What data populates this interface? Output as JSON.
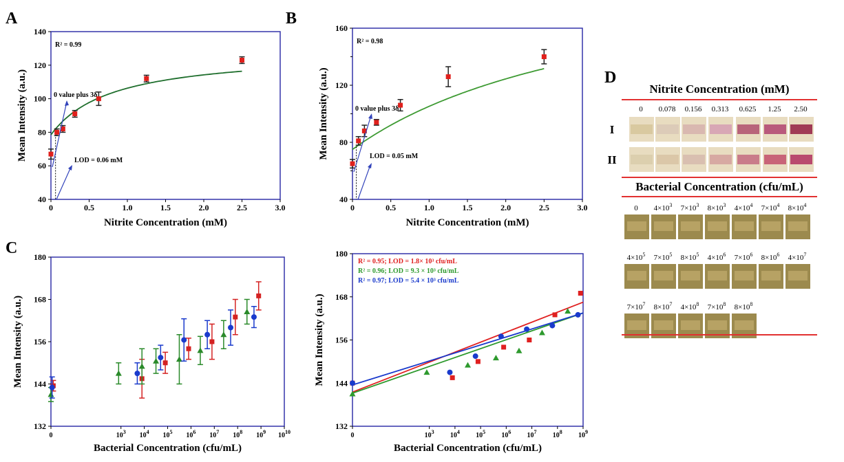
{
  "panels": {
    "A": {
      "label": "A"
    },
    "B": {
      "label": "B"
    },
    "C": {
      "label": "C"
    },
    "D": {
      "label": "D"
    }
  },
  "chart_data": [
    {
      "id": "A",
      "type": "scatter",
      "xlabel": "Nitrite Concentration (mM)",
      "ylabel": "Mean Intensity (a.u.)",
      "xlim": [
        0,
        3.0
      ],
      "ylim": [
        40,
        140
      ],
      "xticks": [
        "0",
        "0.5",
        "1.0",
        "1.5",
        "2.0",
        "2.5",
        "3.0"
      ],
      "yticks": [
        "40",
        "60",
        "80",
        "100",
        "120",
        "140"
      ],
      "grid": false,
      "annotations": {
        "r2": "R² = 0.99",
        "blank": "0 value plus 3δ",
        "lod": "LOD = 0.06 mM"
      },
      "lod_x": 0.06,
      "colors": {
        "points": "#e0201c",
        "fit": "#1e6e2c",
        "axes": "#3333aa",
        "arrows": "#3344bb"
      },
      "points": [
        {
          "x": 0,
          "y": 67,
          "err": 3
        },
        {
          "x": 0.078,
          "y": 80,
          "err": 2
        },
        {
          "x": 0.156,
          "y": 82,
          "err": 2
        },
        {
          "x": 0.313,
          "y": 91,
          "err": 2
        },
        {
          "x": 0.625,
          "y": 100,
          "err": 4
        },
        {
          "x": 1.25,
          "y": 112,
          "err": 2
        },
        {
          "x": 2.5,
          "y": 123,
          "err": 2
        }
      ],
      "fit": {
        "a": 78.5,
        "b": 50,
        "c": 0.8
      }
    },
    {
      "id": "B",
      "type": "scatter",
      "xlabel": "Nitrite Concentration (mM)",
      "ylabel": "Mean Intensity (a.u.)",
      "xlim": [
        0,
        3.0
      ],
      "ylim": [
        40,
        160
      ],
      "xticks": [
        "0",
        "0.5",
        "1.0",
        "1.5",
        "2.0",
        "2.5",
        "3.0"
      ],
      "yticks": [
        "40",
        "80",
        "120",
        "160"
      ],
      "yticks_minor": [
        60,
        100,
        140
      ],
      "grid": false,
      "annotations": {
        "r2": "R² = 0.98",
        "blank": "0 value plus 3δ",
        "lod": "LOD = 0.05 mM"
      },
      "lod_x": 0.05,
      "colors": {
        "points": "#e0201c",
        "fit": "#3d9a32",
        "axes": "#3333aa",
        "arrows": "#3344bb"
      },
      "points": [
        {
          "x": 0,
          "y": 65,
          "err": 3
        },
        {
          "x": 0.078,
          "y": 81,
          "err": 3
        },
        {
          "x": 0.156,
          "y": 88,
          "err": 4
        },
        {
          "x": 0.313,
          "y": 94,
          "err": 2
        },
        {
          "x": 0.625,
          "y": 106,
          "err": 4
        },
        {
          "x": 1.25,
          "y": 126,
          "err": 7
        },
        {
          "x": 2.5,
          "y": 140,
          "err": 5
        }
      ],
      "fit": {
        "a": 75,
        "b": 136,
        "c": 3.5
      }
    },
    {
      "id": "C-left",
      "type": "scatter",
      "xlabel": "Bacterial Concentration (cfu/mL)",
      "ylabel": "Mean Intensity (a.u.)",
      "xlim": [
        0,
        10
      ],
      "ylim": [
        132,
        180
      ],
      "xticks": [
        {
          "v": 0,
          "base": "0",
          "exp": ""
        },
        {
          "v": 3,
          "base": "10",
          "exp": "3"
        },
        {
          "v": 4,
          "base": "10",
          "exp": "4"
        },
        {
          "v": 5,
          "base": "10",
          "exp": "5"
        },
        {
          "v": 6,
          "base": "10",
          "exp": "6"
        },
        {
          "v": 7,
          "base": "10",
          "exp": "7"
        },
        {
          "v": 8,
          "base": "10",
          "exp": "8"
        },
        {
          "v": 9,
          "base": "10",
          "exp": "9"
        },
        {
          "v": 10,
          "base": "10",
          "exp": "10"
        }
      ],
      "yticks": [
        "132",
        "144",
        "156",
        "168",
        "180"
      ],
      "grid": false,
      "colors": {
        "axes": "#3333aa"
      },
      "series": [
        {
          "color": "#d42222",
          "marker": "square",
          "points": [
            {
              "x": 0.1,
              "y": 143.5,
              "err": 1.5
            },
            {
              "x": 3.9,
              "y": 145.5,
              "err": 5.5
            },
            {
              "x": 4.9,
              "y": 150,
              "err": 3
            },
            {
              "x": 5.9,
              "y": 154,
              "err": 3
            },
            {
              "x": 6.9,
              "y": 156,
              "err": 5
            },
            {
              "x": 7.9,
              "y": 163,
              "err": 5
            },
            {
              "x": 8.9,
              "y": 169,
              "err": 4
            }
          ]
        },
        {
          "color": "#2a8a2a",
          "marker": "triangle",
          "points": [
            {
              "x": 0.0,
              "y": 141,
              "err": 2
            },
            {
              "x": 2.9,
              "y": 147,
              "err": 3
            },
            {
              "x": 3.9,
              "y": 149,
              "err": 5
            },
            {
              "x": 4.5,
              "y": 150.5,
              "err": 3.5
            },
            {
              "x": 5.5,
              "y": 151,
              "err": 7
            },
            {
              "x": 6.4,
              "y": 153.5,
              "err": 4
            },
            {
              "x": 7.4,
              "y": 158,
              "err": 4
            },
            {
              "x": 8.4,
              "y": 164.5,
              "err": 3.5
            }
          ]
        },
        {
          "color": "#1a3acc",
          "marker": "circle",
          "points": [
            {
              "x": 0.05,
              "y": 143,
              "err": 3
            },
            {
              "x": 3.7,
              "y": 147,
              "err": 3
            },
            {
              "x": 4.7,
              "y": 151.5,
              "err": 3.5
            },
            {
              "x": 5.7,
              "y": 156.5,
              "err": 6
            },
            {
              "x": 6.7,
              "y": 158,
              "err": 4
            },
            {
              "x": 7.7,
              "y": 160,
              "err": 5
            },
            {
              "x": 8.7,
              "y": 163,
              "err": 3
            }
          ]
        }
      ]
    },
    {
      "id": "C-right",
      "type": "scatter",
      "xlabel": "Bacterial Concentration (cfu/mL)",
      "ylabel": "Mean Intensity (a.u.)",
      "xlim": [
        0,
        9
      ],
      "ylim": [
        132,
        180
      ],
      "xticks": [
        {
          "v": 0,
          "base": "0",
          "exp": ""
        },
        {
          "v": 3,
          "base": "10",
          "exp": "3"
        },
        {
          "v": 4,
          "base": "10",
          "exp": "4"
        },
        {
          "v": 5,
          "base": "10",
          "exp": "5"
        },
        {
          "v": 6,
          "base": "10",
          "exp": "6"
        },
        {
          "v": 7,
          "base": "10",
          "exp": "7"
        },
        {
          "v": 8,
          "base": "10",
          "exp": "8"
        },
        {
          "v": 9,
          "base": "10",
          "exp": "9"
        }
      ],
      "yticks": [
        "132",
        "144",
        "156",
        "168",
        "180"
      ],
      "grid": false,
      "legend": "top-left",
      "colors": {
        "axes": "#3333aa"
      },
      "series": [
        {
          "name": "R² = 0.95; LOD = 1.8× 10³ cfu/mL",
          "color": "#e02020",
          "marker": "square",
          "points": [
            {
              "x": 0,
              "y": 144
            },
            {
              "x": 3.9,
              "y": 145.5
            },
            {
              "x": 4.9,
              "y": 150
            },
            {
              "x": 5.9,
              "y": 154
            },
            {
              "x": 6.9,
              "y": 156
            },
            {
              "x": 7.9,
              "y": 163
            },
            {
              "x": 8.9,
              "y": 169
            }
          ],
          "line": {
            "y0": 141.5,
            "y1": 166.5
          }
        },
        {
          "name": "R² = 0.96; LOD = 9.3 × 10³ cfu/mL",
          "color": "#2e9a2e",
          "marker": "triangle",
          "points": [
            {
              "x": 0,
              "y": 141
            },
            {
              "x": 2.9,
              "y": 147
            },
            {
              "x": 4.5,
              "y": 149
            },
            {
              "x": 5.6,
              "y": 151
            },
            {
              "x": 6.5,
              "y": 153
            },
            {
              "x": 7.4,
              "y": 158
            },
            {
              "x": 8.4,
              "y": 164
            }
          ],
          "line": {
            "y0": 141.2,
            "y1": 163.5
          }
        },
        {
          "name": "R² = 0.97; LOD = 5.4 × 10³ cfu/mL",
          "color": "#1a3acc",
          "marker": "circle",
          "points": [
            {
              "x": 0,
              "y": 144
            },
            {
              "x": 3.8,
              "y": 147
            },
            {
              "x": 4.8,
              "y": 151.5
            },
            {
              "x": 5.8,
              "y": 157
            },
            {
              "x": 6.8,
              "y": 159
            },
            {
              "x": 7.8,
              "y": 160
            },
            {
              "x": 8.8,
              "y": 163
            }
          ],
          "line": {
            "y0": 143.5,
            "y1": 163.5
          }
        }
      ]
    }
  ],
  "panelD": {
    "nitrite_title": "Nitrite Concentration (mM)",
    "nitrite_levels": [
      "0",
      "0.078",
      "0.156",
      "0.313",
      "0.625",
      "1.25",
      "2.50"
    ],
    "row_labels": [
      "I",
      "II"
    ],
    "nitrite_strip_colors": {
      "I": [
        "#d9c9a0",
        "#dccbb8",
        "#d9b8b0",
        "#d8a7b5",
        "#b8647a",
        "#b95a7c",
        "#a03a55"
      ],
      "II": [
        "#dccfae",
        "#dbc7a8",
        "#d9bfb0",
        "#d7a9a2",
        "#c97c8a",
        "#c86478",
        "#b94a6e"
      ]
    },
    "bacterial_title": "Bacterial Concentration (cfu/mL)",
    "bacterial_rows": [
      [
        {
          "base": "0",
          "exp": ""
        },
        {
          "base": "4×10",
          "exp": "3"
        },
        {
          "base": "7×10",
          "exp": "3"
        },
        {
          "base": "8×10",
          "exp": "3"
        },
        {
          "base": "4×10",
          "exp": "4"
        },
        {
          "base": "7×10",
          "exp": "4"
        },
        {
          "base": "8×10",
          "exp": "4"
        }
      ],
      [
        {
          "base": "4×10",
          "exp": "5"
        },
        {
          "base": "7×10",
          "exp": "5"
        },
        {
          "base": "8×10",
          "exp": "5"
        },
        {
          "base": "4×10",
          "exp": "6"
        },
        {
          "base": "7×10",
          "exp": "6"
        },
        {
          "base": "8×10",
          "exp": "6"
        },
        {
          "base": "4×10",
          "exp": "7"
        }
      ],
      [
        {
          "base": "7×10",
          "exp": "7"
        },
        {
          "base": "8×10",
          "exp": "7"
        },
        {
          "base": "4×10",
          "exp": "8"
        },
        {
          "base": "7×10",
          "exp": "8"
        },
        {
          "base": "8×10",
          "exp": "8"
        }
      ]
    ],
    "bacterial_strip_color": "#9c8a4e",
    "rule_color": "#e23030"
  }
}
